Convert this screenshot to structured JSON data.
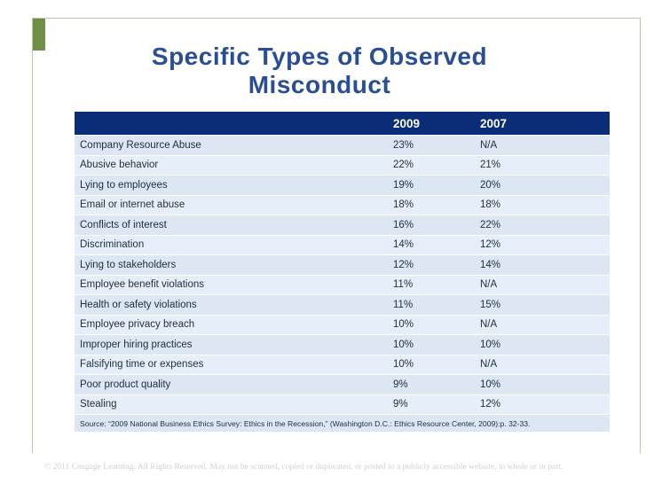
{
  "title": {
    "line1": "Specific Types of Observed",
    "line2": "Misconduct"
  },
  "table": {
    "headers": [
      "",
      "2009",
      "2007"
    ],
    "rows": [
      [
        "Company Resource Abuse",
        "23%",
        "N/A"
      ],
      [
        "Abusive behavior",
        "22%",
        "21%"
      ],
      [
        "Lying to employees",
        "19%",
        "20%"
      ],
      [
        "Email or internet abuse",
        "18%",
        "18%"
      ],
      [
        "Conflicts of interest",
        "16%",
        "22%"
      ],
      [
        "Discrimination",
        "14%",
        "12%"
      ],
      [
        "Lying to stakeholders",
        "12%",
        "14%"
      ],
      [
        "Employee benefit violations",
        "11%",
        "N/A"
      ],
      [
        "Health or safety violations",
        "11%",
        "15%"
      ],
      [
        "Employee privacy breach",
        "10%",
        "N/A"
      ],
      [
        "Improper hiring practices",
        "10%",
        "10%"
      ],
      [
        "Falsifying time or expenses",
        "10%",
        "N/A"
      ],
      [
        "Poor product quality",
        "9%",
        "10%"
      ],
      [
        "Stealing",
        "9%",
        "12%"
      ]
    ],
    "source": "Source: “2009 National Business Ethics Survey: Ethics in the Recession,” (Washington D.C.: Ethics Resource Center, 2009):p. 32-33."
  },
  "footer": {
    "copyright": "© 2011 Cengage Learning. All Rights Reserved. May not be scanned, copied or duplicated, or posted to a publicly accessible website, in whole or in part."
  },
  "colors": {
    "title": "#2a4e93",
    "header_bg": "#0b2d78",
    "row_bg": "#dde6f3",
    "accent_green": "#6f8f47"
  }
}
